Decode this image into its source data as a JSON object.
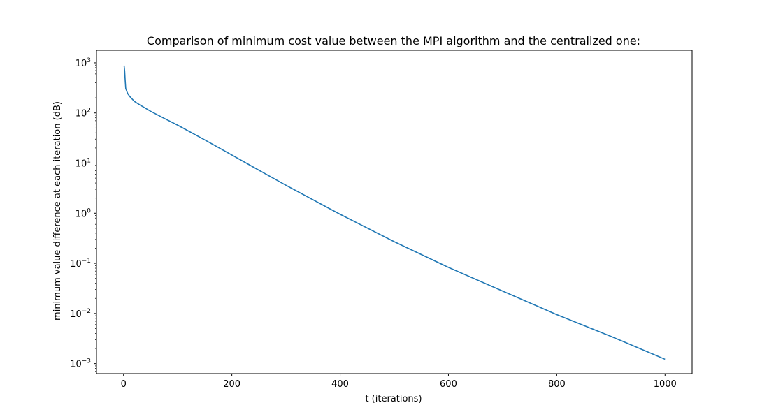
{
  "chart_data": {
    "type": "line",
    "title": "Comparison of minimum cost value between the MPI algorithm and the centralized one:",
    "xlabel": "t (iterations)",
    "ylabel": "minimum value difference at each iteration  (dB)",
    "xlim": [
      -50,
      1050
    ],
    "ylim_log10": [
      -3.2,
      3.25
    ],
    "yscale": "log",
    "grid": false,
    "x_ticks": [
      {
        "value": 0,
        "label": "0"
      },
      {
        "value": 200,
        "label": "200"
      },
      {
        "value": 400,
        "label": "400"
      },
      {
        "value": 600,
        "label": "600"
      },
      {
        "value": 800,
        "label": "800"
      },
      {
        "value": 1000,
        "label": "1000"
      }
    ],
    "y_ticks": [
      {
        "exp": 3,
        "base": "10",
        "sup": "3"
      },
      {
        "exp": 2,
        "base": "10",
        "sup": "2"
      },
      {
        "exp": 1,
        "base": "10",
        "sup": "1"
      },
      {
        "exp": 0,
        "base": "10",
        "sup": "0"
      },
      {
        "exp": -1,
        "base": "10",
        "sup": "−1"
      },
      {
        "exp": -2,
        "base": "10",
        "sup": "−2"
      },
      {
        "exp": -3,
        "base": "10",
        "sup": "−3"
      }
    ],
    "series": [
      {
        "color": "#1f77b4",
        "x": [
          1,
          2,
          3,
          4,
          6,
          8,
          12,
          20,
          30,
          50,
          75,
          100,
          150,
          200,
          250,
          300,
          400,
          500,
          600,
          700,
          800,
          900,
          1000
        ],
        "y": [
          880,
          700,
          450,
          310,
          270,
          240,
          210,
          170,
          145,
          108,
          78,
          57,
          29,
          14.5,
          7.2,
          3.6,
          0.95,
          0.27,
          0.083,
          0.028,
          0.0095,
          0.0035,
          0.00122
        ]
      }
    ]
  }
}
